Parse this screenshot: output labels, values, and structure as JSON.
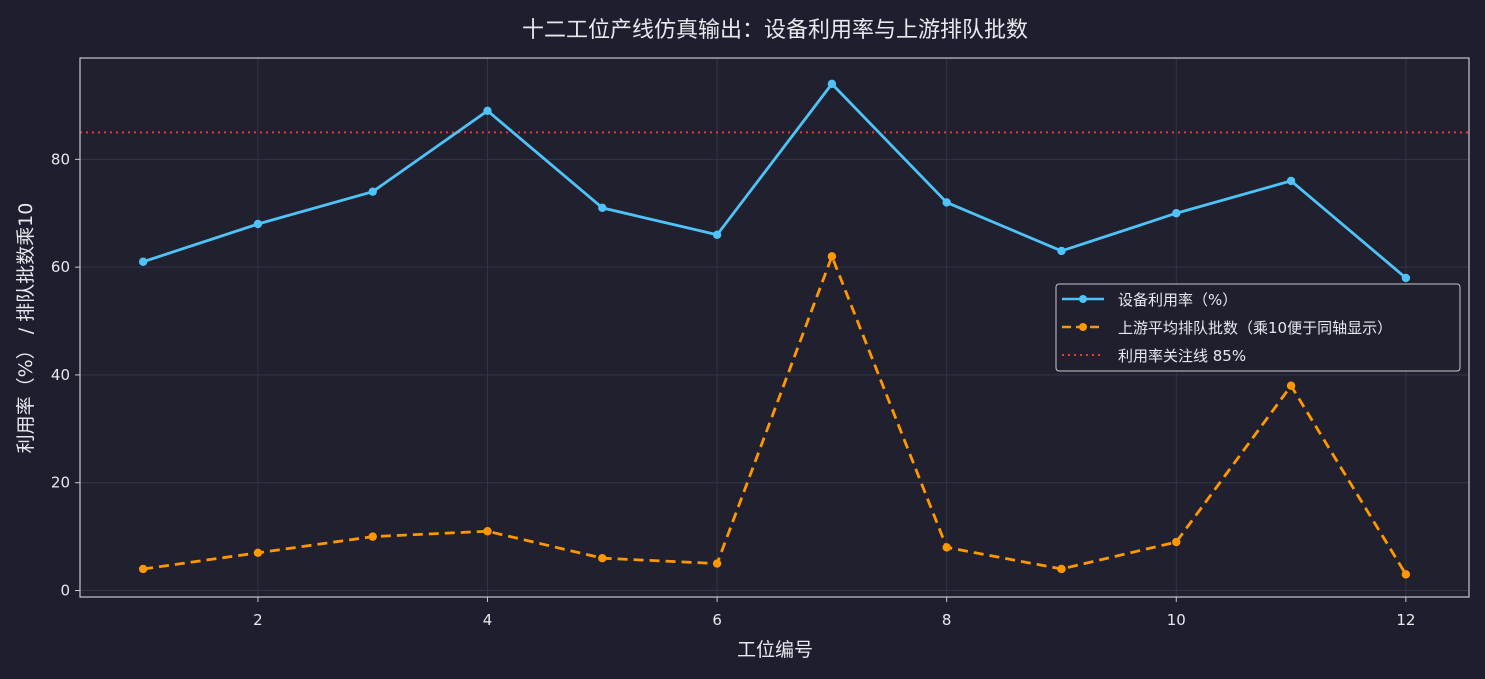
{
  "chart_data": {
    "type": "line",
    "title": "十二工位产线仿真输出：设备利用率与上游排队批数",
    "xlabel": "工位编号",
    "ylabel": "利用率（%） / 排队批数乘10",
    "x": [
      1,
      2,
      3,
      4,
      5,
      6,
      7,
      8,
      9,
      10,
      11,
      12
    ],
    "xlim": [
      0.45,
      12.55
    ],
    "ylim": [
      -1.2,
      98.8
    ],
    "xticks": [
      2,
      4,
      6,
      8,
      10,
      12
    ],
    "yticks": [
      0,
      20,
      40,
      60,
      80
    ],
    "grid": true,
    "legend_position": "center-right",
    "series": [
      {
        "name": "设备利用率（%）",
        "values": [
          61,
          68,
          74,
          89,
          71,
          66,
          94,
          72,
          63,
          70,
          76,
          58
        ],
        "color": "#4fc3f7",
        "style": "solid",
        "marker": "circle"
      },
      {
        "name": "上游平均排队批数（乘10便于同轴显示）",
        "values": [
          4,
          7,
          10,
          11,
          6,
          5,
          62,
          8,
          4,
          9,
          38,
          3
        ],
        "color": "#ff9800",
        "style": "dashed",
        "marker": "circle"
      }
    ],
    "reference_lines": [
      {
        "name": "利用率关注线 85%",
        "y": 85,
        "color": "#e53935",
        "style": "dotted"
      }
    ],
    "colors": {
      "background": "#1e1e2e",
      "axes_face": "#20202f",
      "spine": "#c8c8d0",
      "text": "#e8e8ee",
      "grid": "#34344a"
    }
  }
}
